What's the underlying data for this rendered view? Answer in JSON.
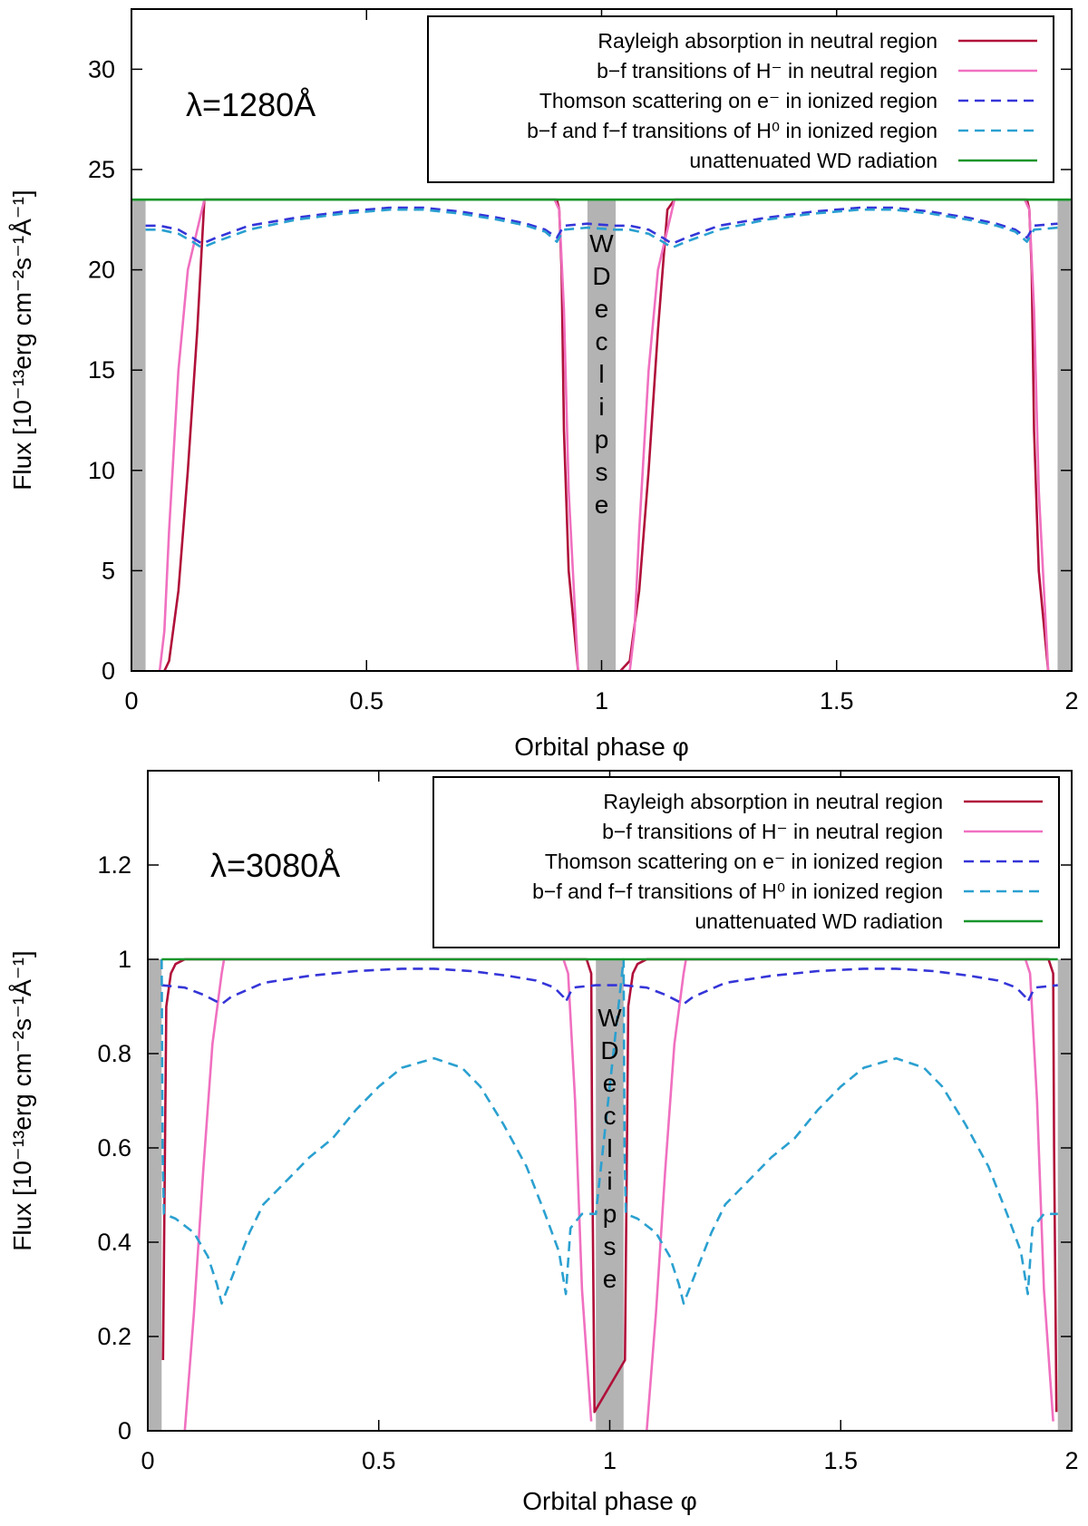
{
  "chart_data": [
    {
      "type": "line",
      "panel": "top",
      "annotation": "λ=1280Å",
      "eclipse_label": "WD eclipse",
      "xlabel": "Orbital phase φ",
      "ylabel": "Flux [10⁻¹³erg cm⁻²s⁻¹Å⁻¹]",
      "xlim": [
        0,
        2
      ],
      "ylim": [
        0,
        33
      ],
      "xticks": [
        0,
        0.5,
        1,
        1.5,
        2
      ],
      "xtick_labels": [
        "0",
        "0.5",
        "1",
        "1.5",
        "2"
      ],
      "yticks": [
        0,
        5,
        10,
        15,
        20,
        25,
        30
      ],
      "ytick_labels": [
        "0",
        "5",
        "10",
        "15",
        "20",
        "25",
        "30"
      ],
      "eclipse_bands": [
        [
          0,
          0.03
        ],
        [
          0.97,
          1.03
        ],
        [
          1.97,
          2.0
        ]
      ],
      "legend_position": "top-right",
      "series": [
        {
          "name": "Rayleigh absorption in neutral region",
          "color": "#b0103a",
          "dash": "solid",
          "x": [
            0.03,
            0.07,
            0.08,
            0.1,
            0.12,
            0.14,
            0.155,
            0.16,
            0.89,
            0.9,
            0.905,
            0.91,
            0.915,
            0.92,
            0.93,
            0.95,
            0.96,
            1.04,
            1.06,
            1.08,
            1.1,
            1.12,
            1.14,
            1.155,
            1.16,
            1.89,
            1.9,
            1.905,
            1.91,
            1.915,
            1.92,
            1.93,
            1.95,
            1.96
          ],
          "y": [
            null,
            0,
            0.5,
            4,
            10,
            17,
            23.5,
            23.5,
            23.5,
            23.5,
            23.5,
            23,
            20,
            12,
            5,
            0,
            null,
            0,
            0.5,
            4,
            10,
            17,
            23,
            23.5,
            23.5,
            23.5,
            23.5,
            23.5,
            23,
            20,
            12,
            5,
            0,
            null
          ]
        },
        {
          "name": "b−f transitions of H⁻ in neutral region",
          "color": "#f070c0",
          "dash": "solid",
          "x": [
            0.03,
            0.06,
            0.07,
            0.08,
            0.1,
            0.12,
            0.14,
            0.155,
            0.16,
            0.88,
            0.89,
            0.9,
            0.91,
            0.92,
            0.93,
            0.95,
            0.96,
            1.04,
            1.06,
            1.07,
            1.08,
            1.1,
            1.12,
            1.14,
            1.155,
            1.16,
            1.88,
            1.89,
            1.9,
            1.91,
            1.92,
            1.93,
            1.95,
            1.96
          ],
          "y": [
            null,
            0,
            2,
            7,
            15,
            20,
            22,
            23.5,
            23.5,
            23.5,
            23.5,
            23.5,
            23,
            18,
            9,
            0,
            null,
            0,
            0,
            2,
            7,
            15,
            20,
            22,
            23.5,
            23.5,
            23.5,
            23.5,
            23.5,
            23,
            18,
            9,
            0,
            null
          ]
        },
        {
          "name": "Thomson scattering on e⁻ in ionized region",
          "color": "#3535d8",
          "dash": "dashed",
          "x": [
            0.03,
            0.06,
            0.1,
            0.13,
            0.15,
            0.18,
            0.25,
            0.35,
            0.45,
            0.55,
            0.62,
            0.7,
            0.78,
            0.84,
            0.88,
            0.905,
            0.92,
            0.97,
            1.03,
            1.06,
            1.1,
            1.13,
            1.15,
            1.18,
            1.25,
            1.35,
            1.45,
            1.55,
            1.62,
            1.7,
            1.78,
            1.84,
            1.88,
            1.905,
            1.92,
            1.97
          ],
          "y": [
            22.2,
            22.2,
            22.0,
            21.6,
            21.3,
            21.6,
            22.2,
            22.6,
            22.9,
            23.1,
            23.1,
            22.9,
            22.6,
            22.3,
            22.0,
            21.6,
            22.2,
            22.3,
            22.2,
            22.2,
            22.0,
            21.6,
            21.3,
            21.6,
            22.2,
            22.6,
            22.9,
            23.1,
            23.1,
            22.9,
            22.6,
            22.3,
            22.0,
            21.6,
            22.2,
            22.3
          ]
        },
        {
          "name": "b−f and f−f transitions of H⁰ in ionized region",
          "color": "#2aa0d0",
          "dash": "dashed",
          "x": [
            0.03,
            0.06,
            0.1,
            0.13,
            0.15,
            0.18,
            0.25,
            0.35,
            0.45,
            0.55,
            0.62,
            0.7,
            0.78,
            0.84,
            0.88,
            0.905,
            0.92,
            0.97,
            1.03,
            1.06,
            1.1,
            1.13,
            1.15,
            1.18,
            1.25,
            1.35,
            1.45,
            1.55,
            1.62,
            1.7,
            1.78,
            1.84,
            1.88,
            1.905,
            1.92,
            1.97
          ],
          "y": [
            22.0,
            22.0,
            21.8,
            21.4,
            21.1,
            21.4,
            22.0,
            22.5,
            22.8,
            23.0,
            23.0,
            22.8,
            22.5,
            22.2,
            21.9,
            21.4,
            22.0,
            22.1,
            22.0,
            22.0,
            21.8,
            21.4,
            21.1,
            21.4,
            22.0,
            22.5,
            22.8,
            23.0,
            23.0,
            22.8,
            22.5,
            22.2,
            21.9,
            21.4,
            22.0,
            22.1
          ]
        },
        {
          "name": "unattenuated WD radiation",
          "color": "#17952a",
          "dash": "solid",
          "x": [
            0,
            2
          ],
          "y": [
            23.5,
            23.5
          ]
        }
      ]
    },
    {
      "type": "line",
      "panel": "bottom",
      "annotation": "λ=3080Å",
      "eclipse_label": "WD eclipse",
      "xlabel": "Orbital phase φ",
      "ylabel": "Flux [10⁻¹³erg cm⁻²s⁻¹Å⁻¹]",
      "xlim": [
        0,
        2
      ],
      "ylim": [
        0,
        1.4
      ],
      "xticks": [
        0,
        0.5,
        1,
        1.5,
        2
      ],
      "xtick_labels": [
        "0",
        "0.5",
        "1",
        "1.5",
        "2"
      ],
      "yticks": [
        0,
        0.2,
        0.4,
        0.6,
        0.8,
        1,
        1.2
      ],
      "ytick_labels": [
        "0",
        "0.2",
        "0.4",
        "0.6",
        "0.8",
        "1",
        "1.2"
      ],
      "eclipse_bands": [
        [
          0,
          0.03
        ],
        [
          0.97,
          1.03
        ],
        [
          1.97,
          2.0
        ]
      ],
      "legend_position": "top-right",
      "series": [
        {
          "name": "Rayleigh absorption in neutral region",
          "color": "#b0103a",
          "dash": "solid",
          "x": [
            0.033,
            0.04,
            0.05,
            0.06,
            0.08,
            0.1,
            0.95,
            0.96,
            0.962,
            0.967,
            1.033,
            1.04,
            1.05,
            1.06,
            1.08,
            1.1,
            1.95,
            1.96,
            1.962,
            1.967
          ],
          "y": [
            0.15,
            0.9,
            0.97,
            0.99,
            1.0,
            1.0,
            1.0,
            0.97,
            0.6,
            0.04,
            0.15,
            0.9,
            0.97,
            0.99,
            1.0,
            1.0,
            1.0,
            0.97,
            0.6,
            0.04
          ]
        },
        {
          "name": "b−f transitions of H⁻ in neutral region",
          "color": "#f070c0",
          "dash": "solid",
          "x": [
            0.03,
            0.08,
            0.1,
            0.12,
            0.14,
            0.16,
            0.165,
            0.89,
            0.9,
            0.91,
            0.925,
            0.94,
            0.96,
            0.97,
            1.03,
            1.08,
            1.1,
            1.12,
            1.14,
            1.16,
            1.165,
            1.89,
            1.9,
            1.91,
            1.925,
            1.94,
            1.96,
            1.97
          ],
          "y": [
            null,
            0,
            0.25,
            0.55,
            0.82,
            0.97,
            1.0,
            1.0,
            1.0,
            0.97,
            0.7,
            0.3,
            0.02,
            null,
            null,
            0,
            0.25,
            0.55,
            0.82,
            0.97,
            1.0,
            1.0,
            1.0,
            0.97,
            0.7,
            0.3,
            0.02,
            null
          ]
        },
        {
          "name": "Thomson scattering on e⁻ in ionized region",
          "color": "#3535d8",
          "dash": "dashed",
          "x": [
            0.03,
            0.08,
            0.12,
            0.15,
            0.16,
            0.18,
            0.25,
            0.35,
            0.45,
            0.55,
            0.62,
            0.7,
            0.78,
            0.84,
            0.88,
            0.9,
            0.905,
            0.92,
            0.97,
            1.03,
            1.08,
            1.12,
            1.15,
            1.16,
            1.18,
            1.25,
            1.35,
            1.45,
            1.55,
            1.62,
            1.7,
            1.78,
            1.84,
            1.88,
            1.9,
            1.905,
            1.92,
            1.97
          ],
          "y": [
            0.945,
            0.94,
            0.925,
            0.91,
            0.905,
            0.92,
            0.95,
            0.965,
            0.975,
            0.98,
            0.98,
            0.975,
            0.965,
            0.955,
            0.94,
            0.92,
            0.91,
            0.94,
            0.945,
            0.945,
            0.94,
            0.925,
            0.91,
            0.905,
            0.92,
            0.95,
            0.965,
            0.975,
            0.98,
            0.98,
            0.975,
            0.965,
            0.955,
            0.94,
            0.92,
            0.91,
            0.94,
            0.945
          ]
        },
        {
          "name": "b−f and f−f transitions of H⁰ in ionized region",
          "color": "#2aa0d0",
          "dash": "dashed",
          "x": [
            0.03,
            0.032,
            0.035,
            0.06,
            0.1,
            0.13,
            0.15,
            0.16,
            0.18,
            0.22,
            0.25,
            0.3,
            0.35,
            0.4,
            0.45,
            0.5,
            0.55,
            0.62,
            0.68,
            0.72,
            0.77,
            0.82,
            0.86,
            0.89,
            0.905,
            0.915,
            0.94,
            0.97,
            1.03,
            1.032,
            1.035,
            1.06,
            1.1,
            1.13,
            1.15,
            1.16,
            1.18,
            1.22,
            1.25,
            1.3,
            1.35,
            1.4,
            1.45,
            1.5,
            1.55,
            1.62,
            1.68,
            1.72,
            1.77,
            1.82,
            1.86,
            1.89,
            1.905,
            1.915,
            1.94,
            1.97
          ],
          "y": [
            1.0,
            0.6,
            0.46,
            0.45,
            0.42,
            0.37,
            0.31,
            0.27,
            0.32,
            0.42,
            0.48,
            0.53,
            0.58,
            0.62,
            0.68,
            0.73,
            0.77,
            0.79,
            0.77,
            0.73,
            0.65,
            0.56,
            0.46,
            0.38,
            0.29,
            0.43,
            0.46,
            0.46,
            1.0,
            0.6,
            0.46,
            0.45,
            0.42,
            0.37,
            0.31,
            0.27,
            0.32,
            0.42,
            0.48,
            0.53,
            0.58,
            0.62,
            0.68,
            0.73,
            0.77,
            0.79,
            0.77,
            0.73,
            0.65,
            0.56,
            0.46,
            0.38,
            0.29,
            0.43,
            0.46,
            0.46
          ]
        },
        {
          "name": "unattenuated WD radiation",
          "color": "#17952a",
          "dash": "solid",
          "x": [
            0.03,
            1.97
          ],
          "y": [
            1.0,
            1.0
          ]
        }
      ]
    }
  ]
}
